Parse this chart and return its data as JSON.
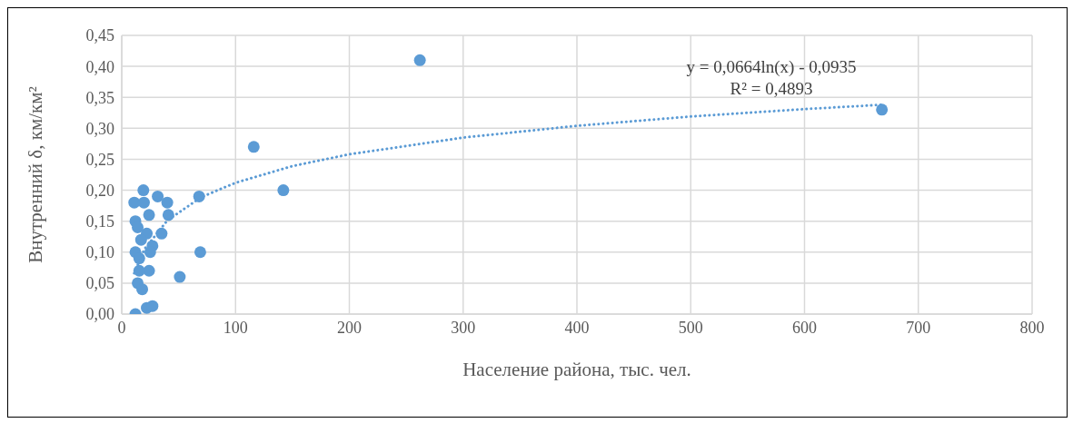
{
  "chart_data": {
    "type": "scatter",
    "xlabel": "Население района, тыс. чел.",
    "ylabel": "Внутренний δ, км/км²",
    "xlim": [
      0,
      800
    ],
    "xticks": [
      0,
      100,
      200,
      300,
      400,
      500,
      600,
      700,
      800
    ],
    "ylim": [
      0,
      0.45
    ],
    "yticks": [
      {
        "value": 0,
        "label": "0,00"
      },
      {
        "value": 0.05,
        "label": "0,05"
      },
      {
        "value": 0.1,
        "label": "0,10"
      },
      {
        "value": 0.15,
        "label": "0,15"
      },
      {
        "value": 0.2,
        "label": "0,20"
      },
      {
        "value": 0.25,
        "label": "0,25"
      },
      {
        "value": 0.3,
        "label": "0,30"
      },
      {
        "value": 0.35,
        "label": "0,35"
      },
      {
        "value": 0.4,
        "label": "0,40"
      },
      {
        "value": 0.45,
        "label": "0,45"
      }
    ],
    "grid": true,
    "marker": "circle",
    "annotations": [
      "y = 0,0664ln(x) - 0,0935",
      "R² = 0,4893"
    ],
    "series": [
      {
        "color": "#5b9bd5",
        "x": [
          19,
          11,
          19.5,
          31.6,
          40,
          68,
          41,
          24,
          12,
          14,
          22,
          35,
          17,
          27,
          25,
          12,
          69,
          15.4,
          24,
          15.4,
          51,
          14,
          18,
          12,
          22,
          27,
          116,
          142,
          262,
          668
        ],
        "values": [
          0.2,
          0.18,
          0.18,
          0.19,
          0.18,
          0.19,
          0.16,
          0.16,
          0.15,
          0.14,
          0.13,
          0.13,
          0.12,
          0.11,
          0.1,
          0.1,
          0.1,
          0.09,
          0.07,
          0.07,
          0.06,
          0.05,
          0.04,
          0,
          0.01,
          0.013,
          0.27,
          0.2,
          0.41,
          0.33
        ]
      },
      {
        "type": "line",
        "color": "#5b9bd5",
        "line_style": "dotted",
        "marker": "none",
        "x": [
          11,
          20,
          40,
          70,
          100,
          150,
          200,
          300,
          400,
          500,
          600,
          668
        ],
        "values": [
          0.066,
          0.105,
          0.151,
          0.189,
          0.212,
          0.239,
          0.258,
          0.285,
          0.304,
          0.319,
          0.331,
          0.338
        ]
      }
    ]
  }
}
